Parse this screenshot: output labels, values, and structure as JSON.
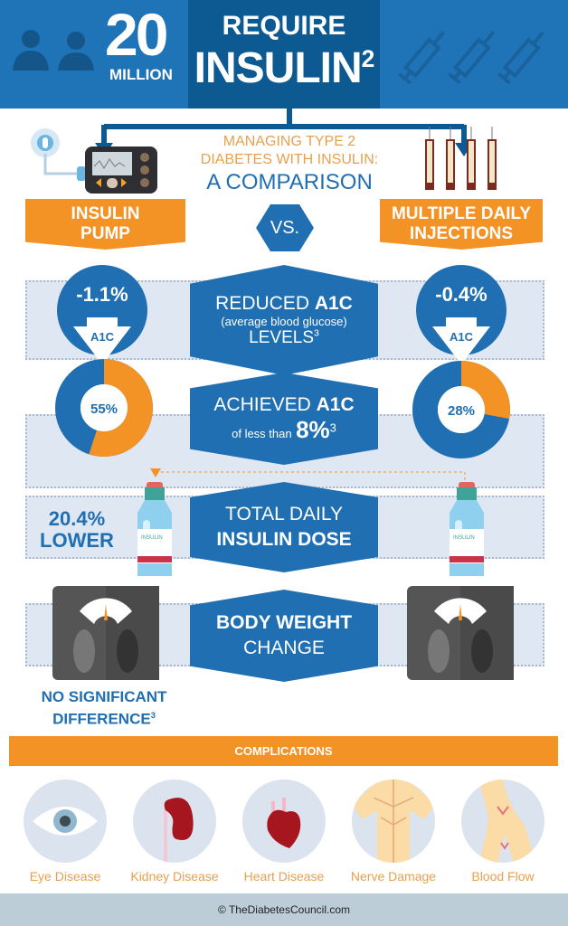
{
  "header": {
    "count": "20",
    "count_unit": "MILLION",
    "line1": "REQUIRE",
    "line2": "INSULIN",
    "line2_sup": "2"
  },
  "title": {
    "line1": "MANAGING TYPE 2",
    "line2": "DIABETES WITH INSULIN:",
    "line3": "A COMPARISON"
  },
  "left_label": {
    "line1": "INSULIN",
    "line2": "PUMP"
  },
  "vs": "VS.",
  "right_label": {
    "line1": "MULTIPLE DAILY",
    "line2": "INJECTIONS"
  },
  "rows": {
    "a1c_reduction": {
      "title": "REDUCED ",
      "title_bold": "A1C",
      "sub": "(average blood glucose)",
      "line3": "LEVELS",
      "sup": "3",
      "left_value": "-1.1%",
      "right_value": "-0.4%",
      "arrow_label": "A1C"
    },
    "a1c_achieved": {
      "title": "ACHIEVED ",
      "title_bold": "A1C",
      "sub": "of less than",
      "big": "8%",
      "sup": "3",
      "left_value": "55%",
      "right_value": "28%",
      "left_fraction": 0.55,
      "right_fraction": 0.28
    },
    "insulin_dose": {
      "line1": "TOTAL DAILY",
      "line2": "INSULIN DOSE",
      "left_value": "20.4%",
      "left_value2": "LOWER",
      "bottle_label": "INSULIN"
    },
    "body_weight": {
      "line1": "BODY WEIGHT",
      "line2": "CHANGE",
      "note1": "NO SIGNIFICANT",
      "note2": "DIFFERENCE",
      "note_sup": "3"
    }
  },
  "complications": {
    "title": "COMPLICATIONS",
    "items": [
      {
        "label": "Eye Disease",
        "icon": "eye-icon"
      },
      {
        "label": "Kidney Disease",
        "icon": "kidney-icon"
      },
      {
        "label": "Heart Disease",
        "icon": "heart-icon"
      },
      {
        "label": "Nerve Damage",
        "icon": "nerve-icon"
      },
      {
        "label": "Blood Flow",
        "icon": "blood-vessel-icon"
      }
    ]
  },
  "footer": "© TheDiabetesCouncil.com",
  "colors": {
    "blue": "#1f73b7",
    "dark_blue": "#0d5a93",
    "orange": "#f39325",
    "band": "#dfe7f3"
  }
}
